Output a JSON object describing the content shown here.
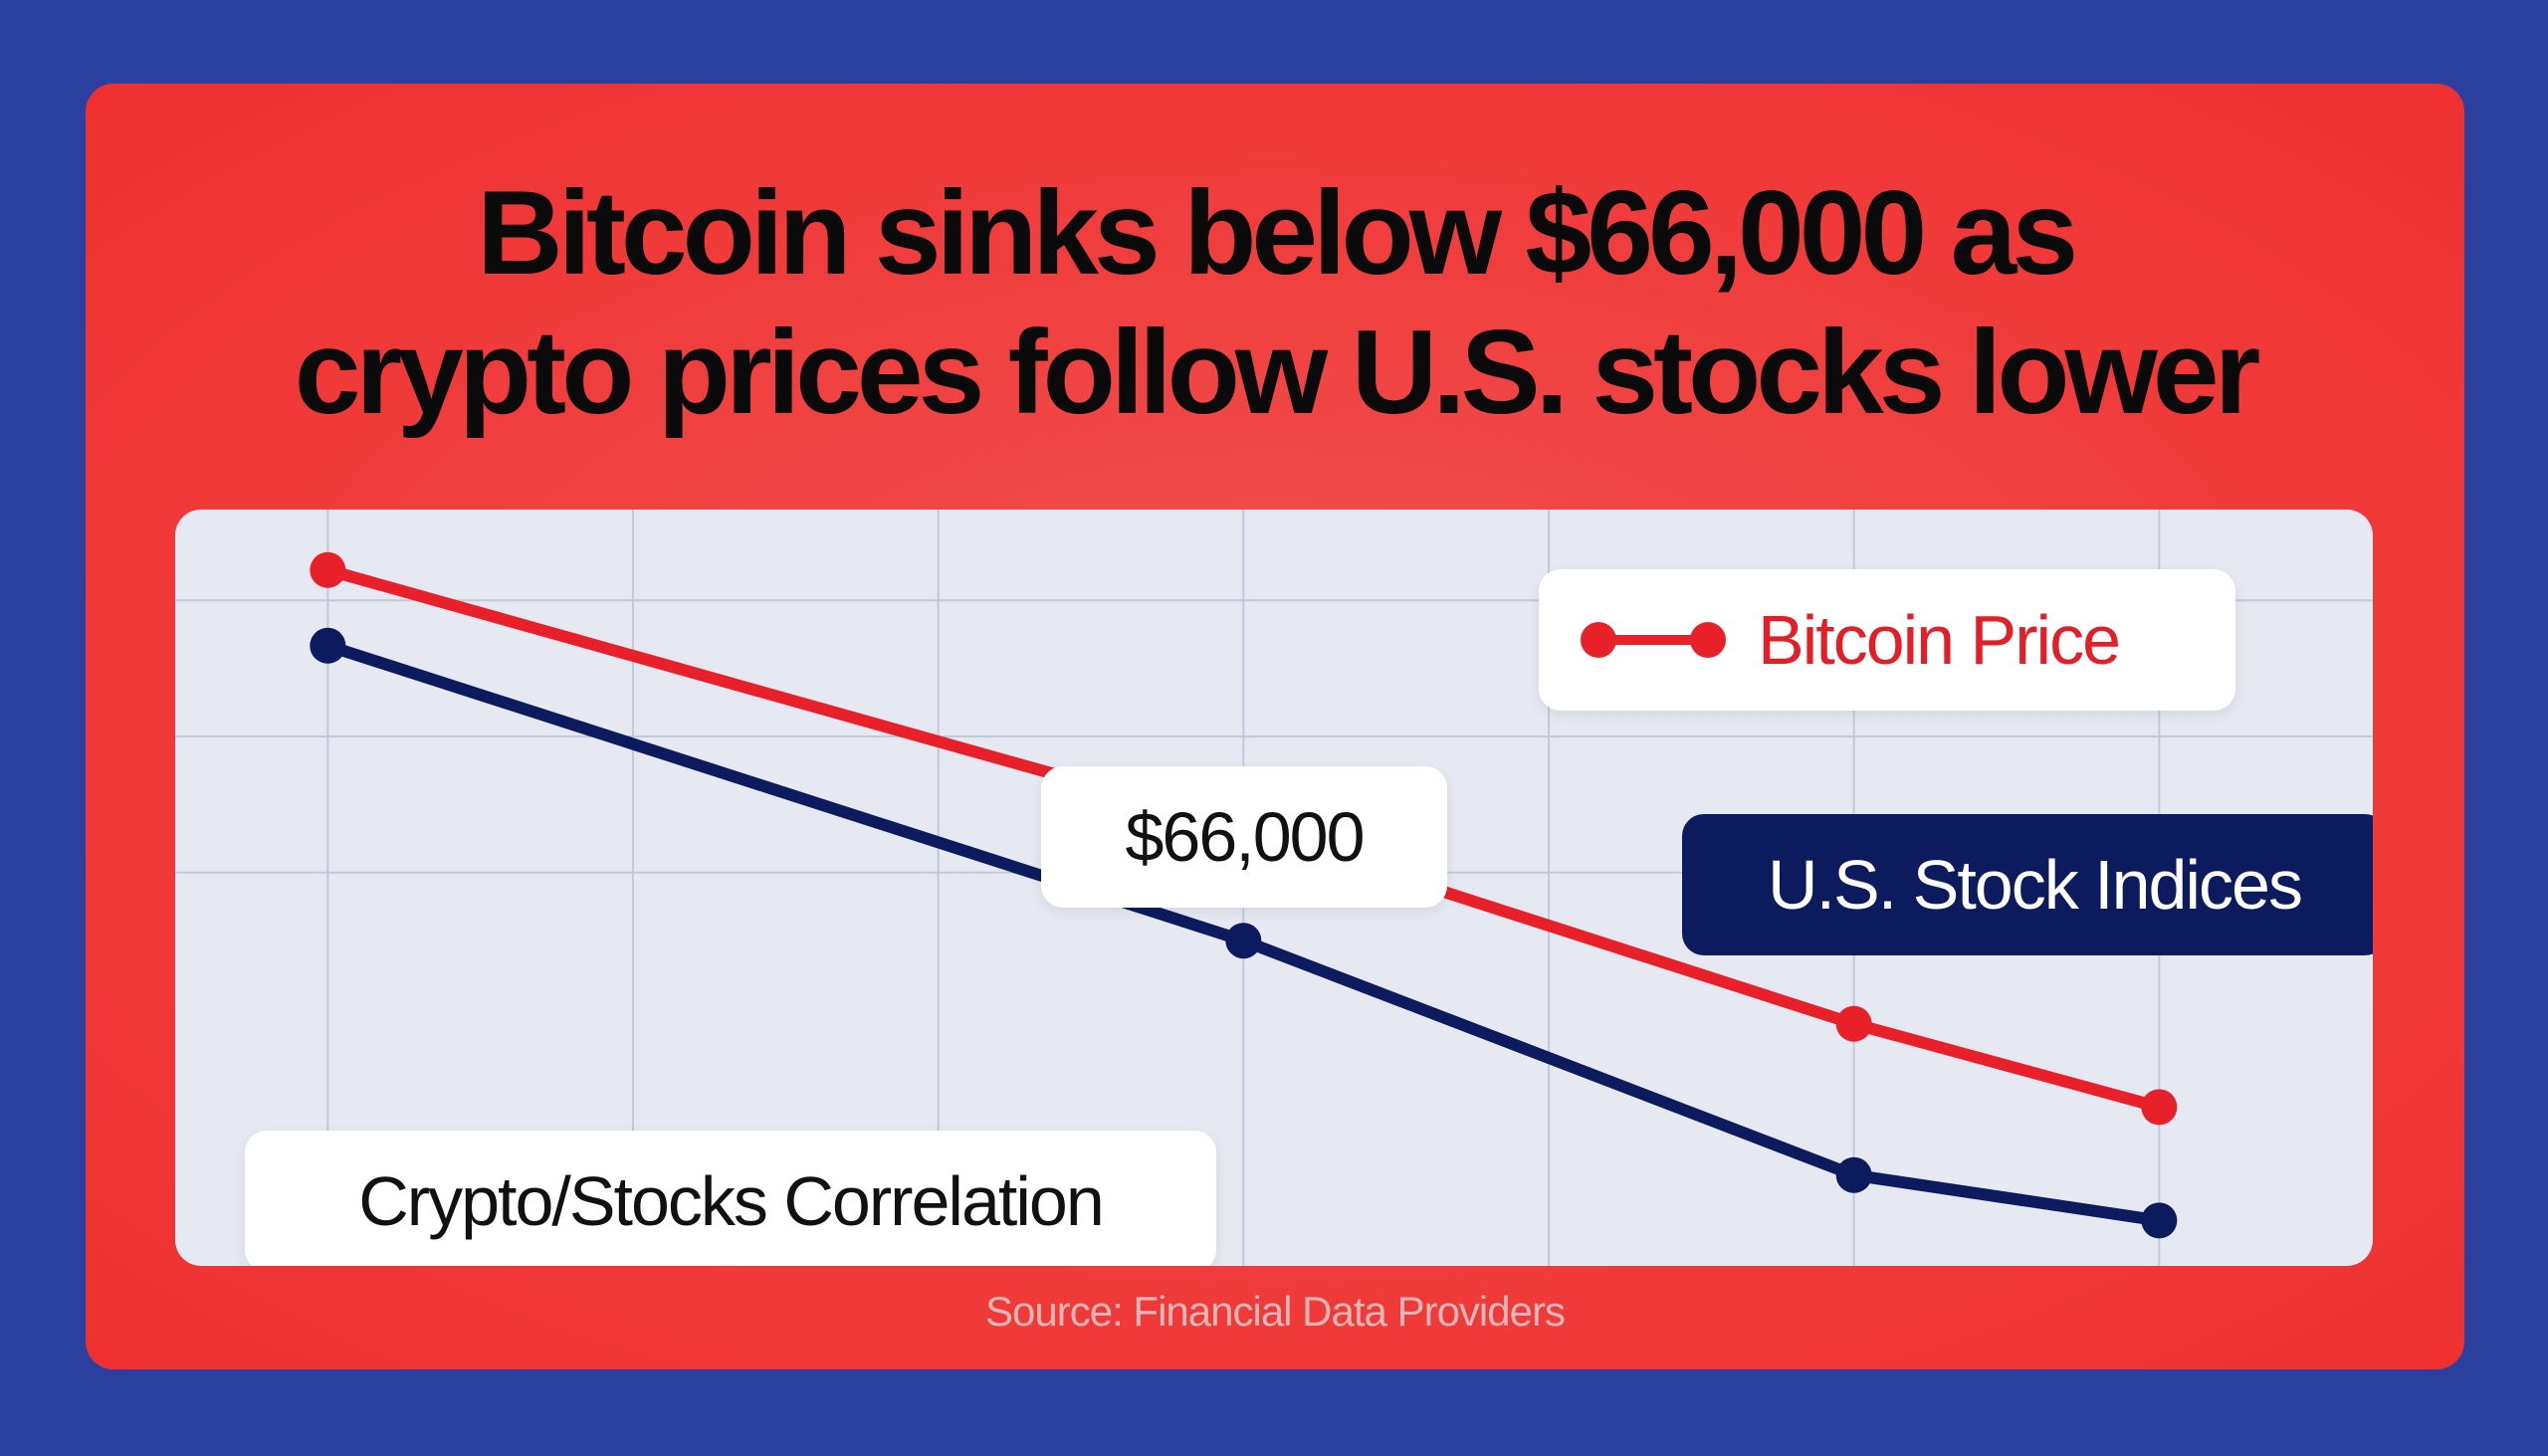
{
  "headline": {
    "line1": "Bitcoin sinks below $66,000 as",
    "line2": "crypto prices follow U.S. stocks lower"
  },
  "source": "Source: Financial Data Providers",
  "colors": {
    "bitcoin": "#e8202a",
    "stocks": "#0b1b5e",
    "card": "#f03838",
    "background": "#2a3f9e",
    "plot_bg": "#e6e9f1"
  },
  "annotations": {
    "price_callout": "$66,000",
    "correlation": "Crypto/Stocks Correlation",
    "stocks_label": "U.S. Stock Indices"
  },
  "chart_data": {
    "type": "line",
    "title": "Bitcoin sinks below $66,000 as crypto prices follow U.S. stocks lower",
    "xlabel": "",
    "ylabel": "",
    "x": [
      1,
      4,
      6,
      7
    ],
    "grid": true,
    "legend": {
      "position": "top-right",
      "entries": [
        "Bitcoin Price"
      ]
    },
    "series": [
      {
        "name": "Bitcoin Price",
        "values": [
          92,
          58,
          32,
          21
        ]
      },
      {
        "name": "U.S. Stock Indices",
        "values": [
          82,
          43,
          12,
          6
        ]
      }
    ],
    "xlim": [
      0.5,
      7.7
    ],
    "ylim": [
      0,
      100
    ]
  }
}
